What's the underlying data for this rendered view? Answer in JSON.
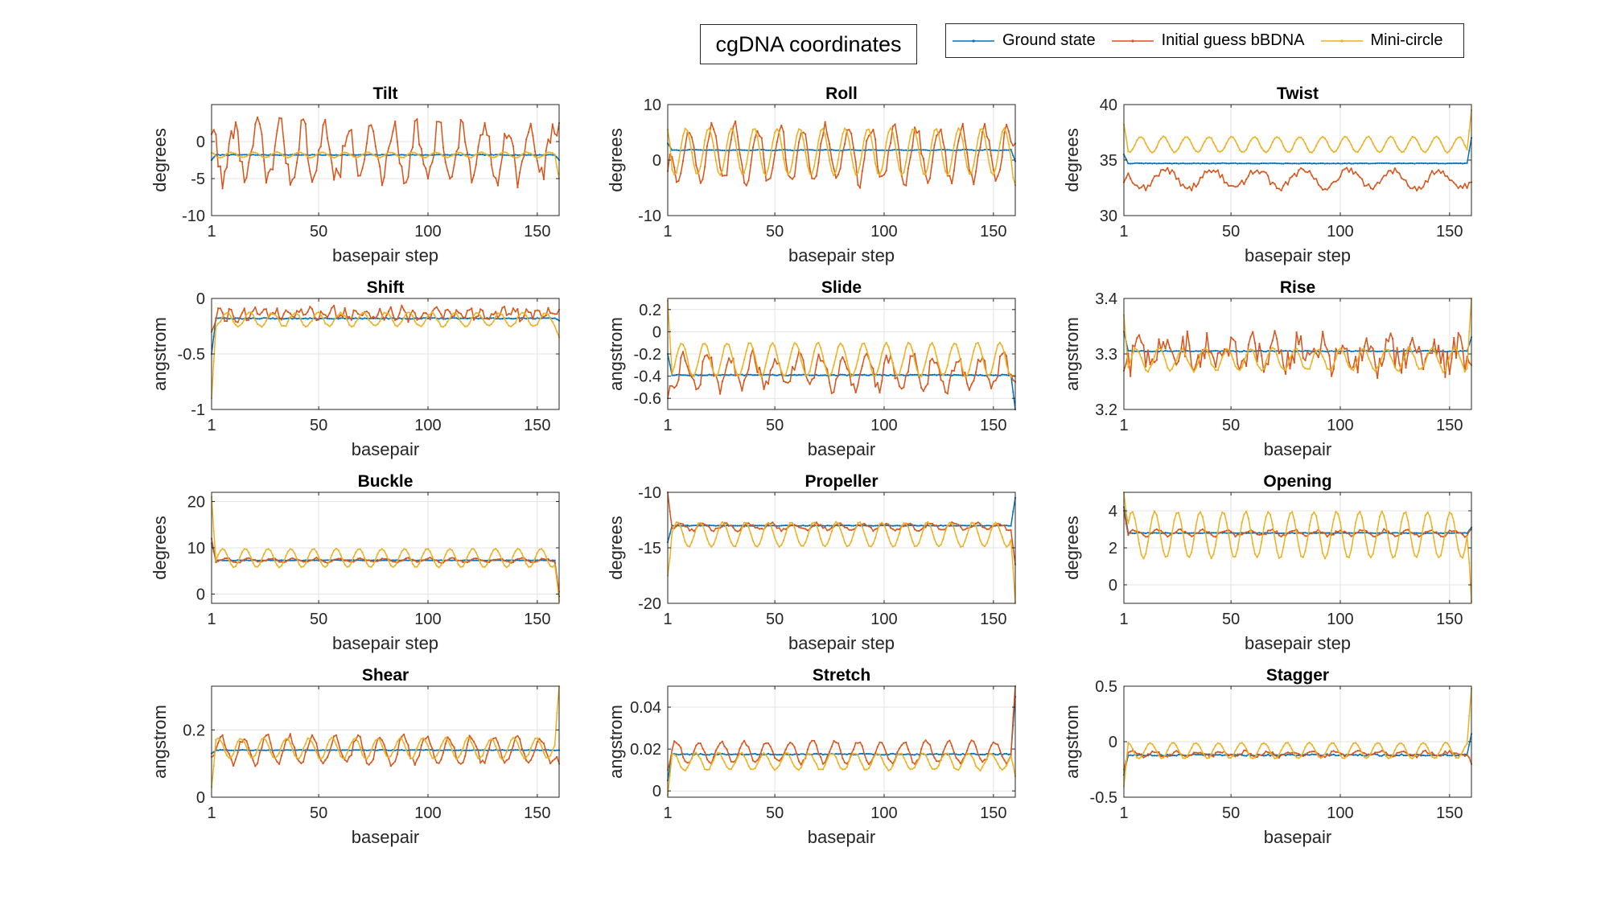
{
  "figure": {
    "title": "cgDNA coordinates",
    "legend": [
      {
        "name": "Ground state",
        "color": "#0072BD"
      },
      {
        "name": "Initial guess bBDNA",
        "color": "#D95319"
      },
      {
        "name": "Mini-circle",
        "color": "#EDB120"
      }
    ]
  },
  "chart_data": [
    {
      "type": "line",
      "title": "Tilt",
      "xlabel": "basepair step",
      "ylabel": "degrees",
      "xlim": [
        1,
        160
      ],
      "ylim": [
        -10,
        5
      ],
      "xticks": [
        1,
        50,
        100,
        150
      ],
      "yticks": [
        -10,
        -5,
        0
      ],
      "grid": true,
      "series": [
        {
          "name": "Ground state",
          "shape": {
            "base": -1.8,
            "amp": 0.0,
            "period": 10.4,
            "noise": 0.05,
            "ends": [
              -2.5,
              -2.5
            ]
          }
        },
        {
          "name": "Initial guess bBDNA",
          "shape": {
            "base": -1.5,
            "amp": 3.5,
            "period": 10.4,
            "noise": 1.5,
            "ends": [
              1.0,
              2.5
            ]
          }
        },
        {
          "name": "Mini-circle",
          "shape": {
            "base": -1.8,
            "amp": 0.35,
            "period": 10.4,
            "noise": 0.05,
            "ends": [
              -1.5,
              -5.0
            ]
          }
        }
      ]
    },
    {
      "type": "line",
      "title": "Roll",
      "xlabel": "basepair step",
      "ylabel": "degrees",
      "xlim": [
        1,
        160
      ],
      "ylim": [
        -10,
        10
      ],
      "xticks": [
        1,
        50,
        100,
        150
      ],
      "yticks": [
        -10,
        0,
        10
      ],
      "grid": true,
      "series": [
        {
          "name": "Ground state",
          "shape": {
            "base": 1.8,
            "amp": 0.05,
            "period": 10.4,
            "noise": 0.05,
            "ends": [
              3.0,
              -0.2
            ]
          }
        },
        {
          "name": "Initial guess bBDNA",
          "shape": {
            "base": 1.0,
            "amp": 5.0,
            "period": 10.4,
            "noise": 1.2,
            "ends": [
              -2.0,
              3.0
            ]
          }
        },
        {
          "name": "Mini-circle",
          "shape": {
            "base": 1.5,
            "amp": 4.2,
            "period": 10.4,
            "noise": 0.1,
            "ends": [
              5.5,
              -4.5
            ]
          }
        }
      ]
    },
    {
      "type": "line",
      "title": "Twist",
      "xlabel": "basepair step",
      "ylabel": "degrees",
      "xlim": [
        1,
        160
      ],
      "ylim": [
        30,
        40
      ],
      "xticks": [
        1,
        50,
        100,
        150
      ],
      "yticks": [
        30,
        35,
        40
      ],
      "grid": true,
      "series": [
        {
          "name": "Ground state",
          "shape": {
            "base": 34.7,
            "amp": 0.0,
            "period": 10.4,
            "noise": 0.03,
            "ends": [
              35.5,
              37.0
            ]
          }
        },
        {
          "name": "Initial guess bBDNA",
          "shape": {
            "base": 33.3,
            "amp": 0.8,
            "period": 20.8,
            "noise": 0.3,
            "ends": [
              33.0,
              33.0
            ]
          }
        },
        {
          "name": "Mini-circle",
          "shape": {
            "base": 36.4,
            "amp": 0.7,
            "period": 10.4,
            "noise": 0.05,
            "ends": [
              38.2,
              39.5
            ]
          }
        }
      ]
    },
    {
      "type": "line",
      "title": "Shift",
      "xlabel": "basepair",
      "ylabel": "angstrom",
      "xlim": [
        1,
        160
      ],
      "ylim": [
        -1,
        0
      ],
      "xticks": [
        1,
        50,
        100,
        150
      ],
      "yticks": [
        -1,
        -0.5,
        0
      ],
      "grid": true,
      "series": [
        {
          "name": "Ground state",
          "shape": {
            "base": -0.18,
            "amp": 0.0,
            "period": 10.4,
            "noise": 0.005,
            "ends": [
              -0.5,
              -0.2
            ]
          }
        },
        {
          "name": "Initial guess bBDNA",
          "shape": {
            "base": -0.14,
            "amp": 0.04,
            "period": 5.2,
            "noise": 0.04,
            "ends": [
              -0.3,
              -0.1
            ]
          }
        },
        {
          "name": "Mini-circle",
          "shape": {
            "base": -0.19,
            "amp": 0.06,
            "period": 10.4,
            "noise": 0.01,
            "ends": [
              -0.9,
              -0.35
            ]
          }
        }
      ]
    },
    {
      "type": "line",
      "title": "Slide",
      "xlabel": "basepair",
      "ylabel": "angstrom",
      "xlim": [
        1,
        160
      ],
      "ylim": [
        -0.7,
        0.3
      ],
      "xticks": [
        1,
        50,
        100,
        150
      ],
      "yticks": [
        -0.6,
        -0.4,
        -0.2,
        0,
        0.2
      ],
      "grid": true,
      "series": [
        {
          "name": "Ground state",
          "shape": {
            "base": -0.39,
            "amp": 0.0,
            "period": 10.4,
            "noise": 0.005,
            "ends": [
              -0.2,
              -0.7
            ]
          }
        },
        {
          "name": "Initial guess bBDNA",
          "shape": {
            "base": -0.36,
            "amp": 0.14,
            "period": 10.4,
            "noise": 0.07,
            "ends": [
              -0.6,
              -0.45
            ]
          }
        },
        {
          "name": "Mini-circle",
          "shape": {
            "base": -0.25,
            "amp": 0.15,
            "period": 10.4,
            "noise": 0.01,
            "ends": [
              0.28,
              -0.4
            ]
          }
        }
      ]
    },
    {
      "type": "line",
      "title": "Rise",
      "xlabel": "basepair",
      "ylabel": "angstrom",
      "xlim": [
        1,
        160
      ],
      "ylim": [
        3.2,
        3.4
      ],
      "xticks": [
        1,
        50,
        100,
        150
      ],
      "yticks": [
        3.2,
        3.3,
        3.4
      ],
      "grid": true,
      "series": [
        {
          "name": "Ground state",
          "shape": {
            "base": 3.305,
            "amp": 0.0,
            "period": 10.4,
            "noise": 0.001,
            "ends": [
              3.34,
              3.33
            ]
          }
        },
        {
          "name": "Initial guess bBDNA",
          "shape": {
            "base": 3.3,
            "amp": 0.02,
            "period": 10.4,
            "noise": 0.025,
            "ends": [
              3.27,
              3.28
            ]
          }
        },
        {
          "name": "Mini-circle",
          "shape": {
            "base": 3.29,
            "amp": 0.02,
            "period": 10.4,
            "noise": 0.003,
            "ends": [
              3.37,
              3.4
            ]
          }
        }
      ]
    },
    {
      "type": "line",
      "title": "Buckle",
      "xlabel": "basepair step",
      "ylabel": "degrees",
      "xlim": [
        1,
        160
      ],
      "ylim": [
        -2,
        22
      ],
      "xticks": [
        1,
        50,
        100,
        150
      ],
      "yticks": [
        0,
        10,
        20
      ],
      "grid": true,
      "series": [
        {
          "name": "Ground state",
          "shape": {
            "base": 7.3,
            "amp": 0.0,
            "period": 10.4,
            "noise": 0.05,
            "ends": [
              11.0,
              -0.5
            ]
          }
        },
        {
          "name": "Initial guess bBDNA",
          "shape": {
            "base": 7.3,
            "amp": 0.4,
            "period": 10.4,
            "noise": 0.2,
            "ends": [
              12.0,
              0.5
            ]
          }
        },
        {
          "name": "Mini-circle",
          "shape": {
            "base": 7.8,
            "amp": 2.0,
            "period": 10.4,
            "noise": 0.05,
            "ends": [
              21.0,
              -1.5
            ]
          }
        }
      ]
    },
    {
      "type": "line",
      "title": "Propeller",
      "xlabel": "basepair step",
      "ylabel": "degrees",
      "xlim": [
        1,
        160
      ],
      "ylim": [
        -20,
        -10
      ],
      "xticks": [
        1,
        50,
        100,
        150
      ],
      "yticks": [
        -20,
        -15,
        -10
      ],
      "grid": true,
      "series": [
        {
          "name": "Ground state",
          "shape": {
            "base": -13.0,
            "amp": 0.0,
            "period": 10.4,
            "noise": 0.03,
            "ends": [
              -14.5,
              -10.5
            ]
          }
        },
        {
          "name": "Initial guess bBDNA",
          "shape": {
            "base": -13.1,
            "amp": 0.3,
            "period": 10.4,
            "noise": 0.15,
            "ends": [
              -10.0,
              -16.5
            ]
          }
        },
        {
          "name": "Mini-circle",
          "shape": {
            "base": -13.8,
            "amp": 1.1,
            "period": 10.4,
            "noise": 0.05,
            "ends": [
              -17.5,
              -20.0
            ]
          }
        }
      ]
    },
    {
      "type": "line",
      "title": "Opening",
      "xlabel": "basepair step",
      "ylabel": "degrees",
      "xlim": [
        1,
        160
      ],
      "ylim": [
        -1,
        5
      ],
      "xticks": [
        1,
        50,
        100,
        150
      ],
      "yticks": [
        0,
        2,
        4
      ],
      "grid": true,
      "series": [
        {
          "name": "Ground state",
          "shape": {
            "base": 2.8,
            "amp": 0.0,
            "period": 10.4,
            "noise": 0.02,
            "ends": [
              4.2,
              3.1
            ]
          }
        },
        {
          "name": "Initial guess bBDNA",
          "shape": {
            "base": 2.8,
            "amp": 0.15,
            "period": 10.4,
            "noise": 0.08,
            "ends": [
              4.0,
              3.0
            ]
          }
        },
        {
          "name": "Mini-circle",
          "shape": {
            "base": 2.7,
            "amp": 1.25,
            "period": 10.4,
            "noise": 0.04,
            "ends": [
              5.2,
              -0.9
            ]
          }
        }
      ]
    },
    {
      "type": "line",
      "title": "Shear",
      "xlabel": "basepair",
      "ylabel": "angstrom",
      "xlim": [
        1,
        160
      ],
      "ylim": [
        0,
        0.33
      ],
      "xticks": [
        1,
        50,
        100,
        150
      ],
      "yticks": [
        0,
        0.2
      ],
      "grid": true,
      "series": [
        {
          "name": "Ground state",
          "shape": {
            "base": 0.14,
            "amp": 0.0,
            "period": 10.4,
            "noise": 0.001,
            "ends": [
              0.13,
              0.14
            ]
          }
        },
        {
          "name": "Initial guess bBDNA",
          "shape": {
            "base": 0.14,
            "amp": 0.04,
            "period": 10.4,
            "noise": 0.01,
            "ends": [
              0.12,
              0.1
            ]
          }
        },
        {
          "name": "Mini-circle",
          "shape": {
            "base": 0.145,
            "amp": 0.03,
            "period": 10.4,
            "noise": 0.003,
            "ends": [
              0.03,
              0.33
            ]
          }
        }
      ]
    },
    {
      "type": "line",
      "title": "Stretch",
      "xlabel": "basepair",
      "ylabel": "angstrom",
      "xlim": [
        1,
        160
      ],
      "ylim": [
        -0.003,
        0.05
      ],
      "xticks": [
        1,
        50,
        100,
        150
      ],
      "yticks": [
        0,
        0.02,
        0.04
      ],
      "grid": true,
      "series": [
        {
          "name": "Ground state",
          "shape": {
            "base": 0.0175,
            "amp": 0.0,
            "period": 10.4,
            "noise": 0.0003,
            "ends": [
              0.005,
              0.045
            ]
          }
        },
        {
          "name": "Initial guess bBDNA",
          "shape": {
            "base": 0.0185,
            "amp": 0.005,
            "period": 10.4,
            "noise": 0.001,
            "ends": [
              0.01,
              0.05
            ]
          }
        },
        {
          "name": "Mini-circle",
          "shape": {
            "base": 0.014,
            "amp": 0.004,
            "period": 10.4,
            "noise": 0.0005,
            "ends": [
              -0.002,
              0.007
            ]
          }
        }
      ]
    },
    {
      "type": "line",
      "title": "Stagger",
      "xlabel": "basepair",
      "ylabel": "angstrom",
      "xlim": [
        1,
        160
      ],
      "ylim": [
        -0.5,
        0.5
      ],
      "xticks": [
        1,
        50,
        100,
        150
      ],
      "yticks": [
        -0.5,
        0,
        0.5
      ],
      "grid": true,
      "series": [
        {
          "name": "Ground state",
          "shape": {
            "base": -0.12,
            "amp": 0.0,
            "period": 10.4,
            "noise": 0.008,
            "ends": [
              -0.3,
              0.07
            ]
          }
        },
        {
          "name": "Initial guess bBDNA",
          "shape": {
            "base": -0.11,
            "amp": 0.02,
            "period": 10.4,
            "noise": 0.015,
            "ends": [
              -0.25,
              -0.2
            ]
          }
        },
        {
          "name": "Mini-circle",
          "shape": {
            "base": -0.08,
            "amp": 0.07,
            "period": 10.4,
            "noise": 0.004,
            "ends": [
              -0.4,
              0.48
            ]
          }
        }
      ]
    }
  ]
}
